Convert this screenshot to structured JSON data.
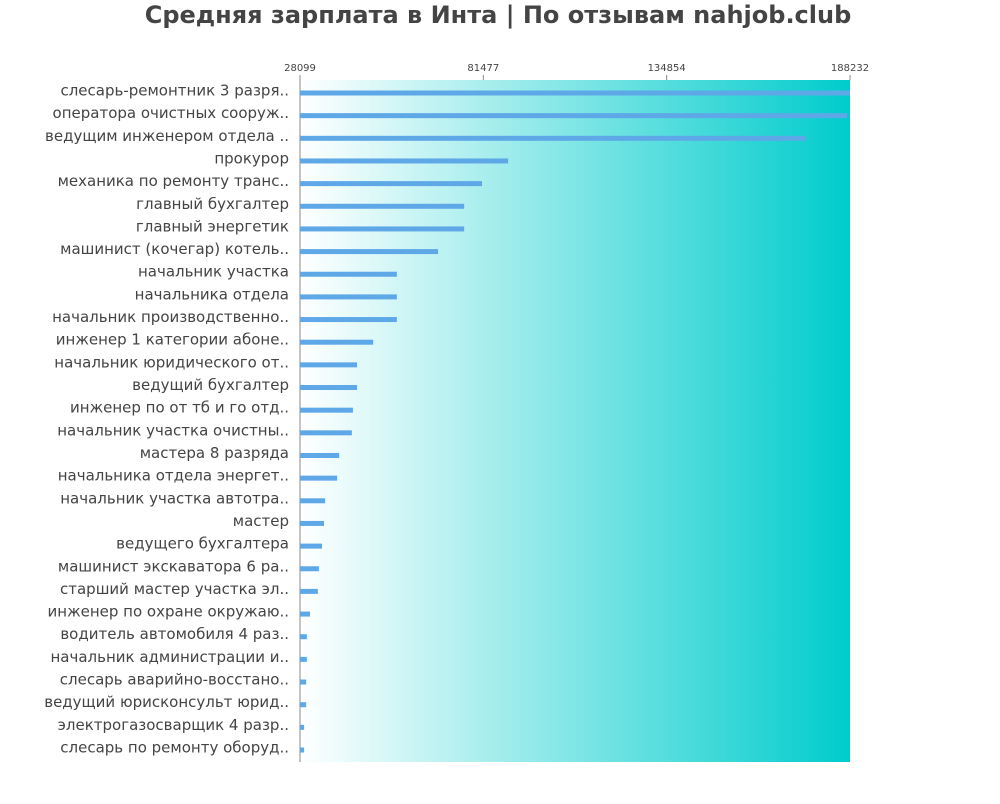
{
  "chart_data": {
    "type": "hbar",
    "title": "Средняя зарплата в Инта | По отзывам nahjob.club",
    "categories": [
      "слесарь-ремонтник 3 разря..",
      "оператора очистных сооруж..",
      "ведущим инженером отдела ..",
      "прокурор",
      "механика по ремонту транс..",
      "главный бухгалтер",
      "главный энергетик",
      "машинист (кочегар) котель..",
      "начальник участка",
      "начальника отдела",
      "начальник производственно..",
      "инженер 1 категории абоне..",
      "начальник юридического от..",
      "ведущий бухгалтер",
      "инженер по от тб и го отд..",
      "начальник участка очистны..",
      "мастера 8 разряда",
      "начальника отдела энергет..",
      "начальник участка автотра..",
      "мастер",
      "ведущего бухгалтера",
      "машинист экскаватора 6 ра..",
      "старший мастер участка эл..",
      "инженер по охране окружаю..",
      "водитель автомобиля 4 раз..",
      "начальник администрации и..",
      "слесарь аварийно-восстано..",
      "ведущий юрисконсульт юрид..",
      "электрогазосварщик 4 разр..",
      "слесарь по ремонту оборуд.."
    ],
    "values": [
      188232,
      187300,
      175100,
      88700,
      81100,
      75900,
      75900,
      68300,
      56300,
      56300,
      56300,
      49400,
      44700,
      44700,
      43500,
      43200,
      39500,
      38900,
      35400,
      35100,
      34500,
      33600,
      33300,
      31000,
      30100,
      30100,
      29900,
      29900,
      29300,
      29300
    ],
    "color": "#5ea8e8",
    "xlim": [
      28099,
      188232
    ],
    "xticks": [
      28099,
      81477,
      134854,
      188232
    ]
  }
}
